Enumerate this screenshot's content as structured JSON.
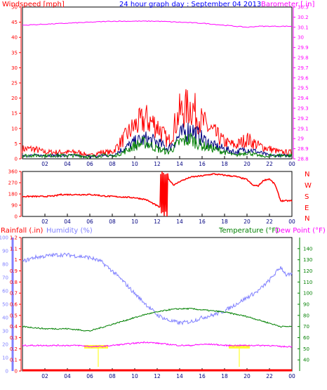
{
  "header": {
    "title": "24 hour graph day : September 04 2013",
    "left_label": "Windspeed [mph]",
    "right_label": "Barometer [.in]"
  },
  "dir_labels": [
    "N",
    "W",
    "S",
    "E",
    "N"
  ],
  "bottom_labels": {
    "rainfall": "Rainfall (.in)",
    "humidity": "Humidity (%)",
    "temperature": "Temperature (°F)",
    "dewpoint": "Dew Point (°F)"
  },
  "colors": {
    "wind": "#ff0000",
    "gust_mid": "#000080",
    "wind_avg": "#008000",
    "barometer": "#ff00ff",
    "direction": "#ff0000",
    "humidity": "#8080ff",
    "temperature": "#008000",
    "dewpoint": "#ff00ff",
    "rain": "#ff0000",
    "solar": "#ffff00",
    "title": "#0000ff"
  },
  "chart_data": [
    {
      "type": "line",
      "xlabel": "",
      "ylabel": "Windspeed [mph]",
      "y2label": "Barometer [.in]",
      "x_ticks": [
        "02",
        "04",
        "06",
        "08",
        "10",
        "12",
        "14",
        "16",
        "18",
        "20",
        "22",
        "00"
      ],
      "ylim": [
        0,
        50
      ],
      "y_ticks": [
        0,
        5,
        10,
        15,
        20,
        25,
        30,
        35,
        40,
        45,
        50
      ],
      "y2lim": [
        28.8,
        30.3
      ],
      "y2_ticks": [
        28.8,
        28.9,
        29,
        29.1,
        29.2,
        29.3,
        29.4,
        29.5,
        29.6,
        29.7,
        29.8,
        29.9,
        30,
        30.1,
        30.2,
        30.3
      ],
      "series": [
        {
          "name": "Windspeed [mph]",
          "x": [
            0,
            1,
            2,
            3,
            4,
            5,
            6,
            7,
            8,
            9,
            10,
            11,
            12,
            13,
            14,
            15,
            16,
            17,
            18,
            19,
            20,
            21,
            22,
            23,
            24
          ],
          "values": [
            3,
            3,
            2,
            2,
            2,
            2,
            1,
            2,
            2,
            6,
            10,
            12,
            10,
            5,
            14,
            16,
            11,
            8,
            5,
            4,
            6,
            4,
            3,
            2,
            2
          ]
        },
        {
          "name": "",
          "x": [
            0,
            1,
            2,
            3,
            4,
            5,
            6,
            7,
            8,
            9,
            10,
            11,
            12,
            13,
            14,
            15,
            16,
            17,
            18,
            19,
            20,
            21,
            22,
            23,
            24
          ],
          "values": [
            1,
            1,
            1,
            1,
            1,
            1,
            0,
            1,
            1,
            3,
            5,
            6,
            5,
            3,
            7,
            9,
            6,
            4,
            3,
            2,
            3,
            2,
            1,
            1,
            1
          ]
        },
        {
          "name": "",
          "x": [
            0,
            1,
            2,
            3,
            4,
            5,
            6,
            7,
            8,
            9,
            10,
            11,
            12,
            13,
            14,
            15,
            16,
            17,
            18,
            19,
            20,
            21,
            22,
            23,
            24
          ],
          "values": [
            0.5,
            0.5,
            0.5,
            0.5,
            0.5,
            0.5,
            0,
            0.5,
            0.5,
            2,
            4,
            5,
            3,
            2,
            5,
            6,
            4,
            3,
            2,
            1,
            2,
            1,
            0.5,
            0.5,
            0.5
          ]
        },
        {
          "name": "Barometer [.in]",
          "x": [
            0,
            2,
            4,
            6,
            8,
            10,
            12,
            14,
            16,
            18,
            19,
            20,
            21,
            22,
            24
          ],
          "values": [
            30.12,
            30.13,
            30.14,
            30.15,
            30.16,
            30.16,
            30.16,
            30.15,
            30.14,
            30.12,
            30.11,
            30.1,
            30.11,
            30.11,
            30.11
          ]
        }
      ]
    },
    {
      "type": "line",
      "x_ticks": [
        "02",
        "04",
        "06",
        "08",
        "10",
        "12",
        "14",
        "16",
        "18",
        "20",
        "22",
        "00"
      ],
      "ylim": [
        0,
        360
      ],
      "y_ticks": [
        0,
        90,
        180,
        270,
        360
      ],
      "series": [
        {
          "name": "",
          "x": [
            0,
            1,
            2,
            3,
            3.3,
            4,
            5,
            6,
            6.8,
            7,
            8,
            9,
            10,
            11,
            12.5,
            12.6,
            13,
            13.5,
            14,
            15,
            16,
            17,
            18,
            19,
            20,
            20.5,
            21,
            21.5,
            22,
            22.5,
            23,
            24
          ],
          "values": [
            160,
            160,
            160,
            165,
            175,
            175,
            175,
            175,
            170,
            165,
            160,
            155,
            150,
            135,
            60,
            0,
            300,
            250,
            280,
            315,
            325,
            340,
            330,
            320,
            295,
            250,
            245,
            290,
            300,
            255,
            125,
            125
          ]
        }
      ]
    },
    {
      "type": "line",
      "x_ticks": [
        "02",
        "04",
        "06",
        "08",
        "10",
        "12",
        "14",
        "16",
        "18",
        "20",
        "22",
        "00"
      ],
      "ylabel": "Rainfall (.in)",
      "ylim": [
        0,
        1.2
      ],
      "y_ticks": [
        0,
        0.1,
        0.2,
        0.3,
        0.4,
        0.5,
        0.6,
        0.7,
        0.8,
        0.9,
        1,
        1.1,
        1.2
      ],
      "humidity_lim": [
        0,
        100
      ],
      "humidity_ticks": [
        0,
        10,
        20,
        30,
        40,
        50,
        60,
        70,
        80,
        90,
        100
      ],
      "y2label": "Temperature (°F)",
      "y2lim": [
        30,
        150
      ],
      "y2_ticks": [
        40,
        50,
        60,
        70,
        80,
        90,
        100,
        110,
        120,
        130,
        140
      ],
      "series": [
        {
          "name": "Humidity (%)",
          "x": [
            0,
            1,
            2,
            3,
            4,
            5,
            6,
            7,
            8,
            9,
            10,
            11,
            12,
            13,
            14,
            15,
            16,
            17,
            18,
            19,
            20,
            21,
            22,
            23,
            23.5,
            24
          ],
          "values": [
            82,
            85,
            86,
            87,
            87,
            86,
            85,
            82,
            75,
            67,
            58,
            50,
            42,
            38,
            36,
            37,
            40,
            42,
            45,
            50,
            55,
            60,
            68,
            78,
            72,
            72
          ]
        },
        {
          "name": "Temperature (°F)",
          "x": [
            0,
            1,
            2,
            3,
            4,
            5,
            6,
            7,
            8,
            9,
            10,
            11,
            12,
            13,
            14,
            15,
            16,
            17,
            18,
            19,
            20,
            21,
            22,
            23,
            24
          ],
          "values": [
            70,
            69,
            68,
            68,
            68,
            67,
            66,
            69,
            72,
            75,
            78,
            81,
            83,
            85,
            86,
            86,
            85,
            84,
            83,
            81,
            79,
            76,
            73,
            70,
            70
          ]
        },
        {
          "name": "Dew Point (°F)",
          "x": [
            0,
            1,
            2,
            3,
            4,
            5,
            6,
            7,
            8,
            9,
            10,
            11,
            12,
            13,
            14,
            15,
            16,
            17,
            18,
            19,
            20,
            21,
            22,
            23,
            24
          ],
          "values": [
            53,
            53,
            53,
            53,
            53,
            53,
            52,
            52,
            53,
            54,
            55,
            56,
            55,
            54,
            53,
            53,
            54,
            54,
            53,
            53,
            53,
            53,
            53,
            52,
            52
          ]
        },
        {
          "name": "Rainfall (.in)",
          "x": [
            0,
            24
          ],
          "values": [
            0,
            0
          ]
        }
      ]
    }
  ]
}
